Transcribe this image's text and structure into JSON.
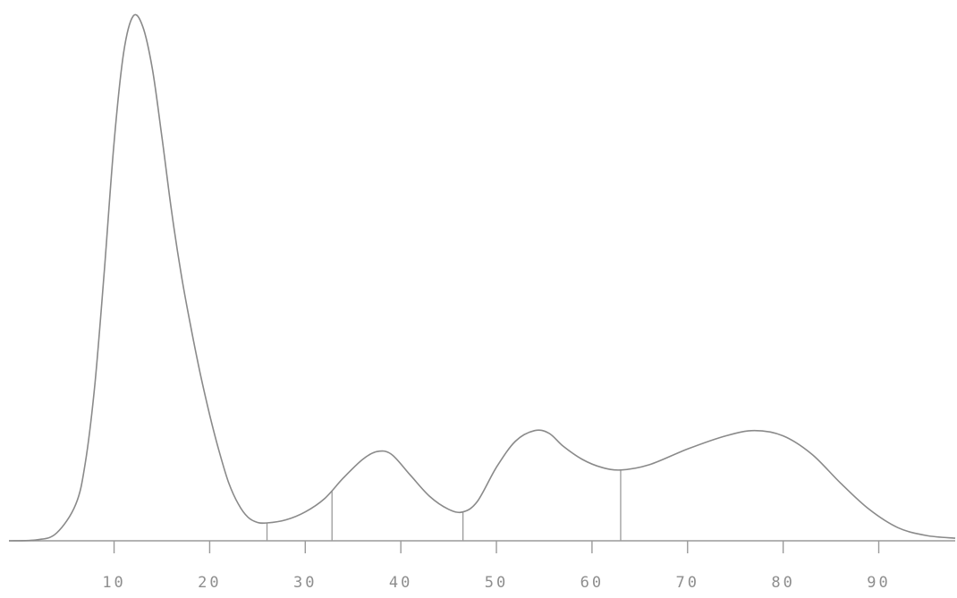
{
  "chart_data": {
    "type": "line",
    "title": "",
    "xlabel": "",
    "ylabel": "",
    "xlim": [
      -1,
      98
    ],
    "ylim": [
      0,
      100
    ],
    "grid": false,
    "line_color": "#8a8a8a",
    "axis_color": "#9a9a9a",
    "x_ticks": [
      {
        "value": 10,
        "label": "10"
      },
      {
        "value": 20,
        "label": "20"
      },
      {
        "value": 30,
        "label": "30"
      },
      {
        "value": 40,
        "label": "40"
      },
      {
        "value": 50,
        "label": "50"
      },
      {
        "value": 60,
        "label": "60"
      },
      {
        "value": 70,
        "label": "70"
      },
      {
        "value": 80,
        "label": "80"
      },
      {
        "value": 90,
        "label": "90"
      }
    ],
    "series": [
      {
        "x": [
          -1,
          2,
          4,
          6,
          7,
          8,
          9,
          10,
          11,
          12,
          13,
          14,
          15,
          16,
          17,
          18,
          19,
          20,
          21,
          22,
          23,
          24,
          25,
          26,
          28,
          30,
          32,
          34,
          36,
          37.5,
          39,
          41,
          43,
          45,
          46.5,
          48,
          50,
          52,
          54,
          55.5,
          57,
          59,
          61,
          63,
          66,
          70,
          74,
          77,
          80,
          83,
          86,
          89,
          92,
          95,
          98
        ],
        "y": [
          0,
          0.2,
          1.5,
          7,
          15,
          30,
          52,
          76,
          93,
          100,
          98,
          90,
          77,
          63,
          51,
          41,
          32,
          24,
          17,
          11,
          7,
          4.5,
          3.5,
          3.4,
          4,
          5.5,
          8,
          12,
          15.5,
          17,
          16.5,
          12.5,
          8.5,
          6,
          5.5,
          7.5,
          14,
          19,
          21,
          20.5,
          18,
          15.5,
          14,
          13.5,
          14.5,
          17.5,
          20,
          21,
          20,
          16.5,
          11,
          6,
          2.5,
          1,
          0.5
        ]
      }
    ],
    "dividers": [
      {
        "x": 26,
        "y": 3.4
      },
      {
        "x": 32.8,
        "y": 9.5
      },
      {
        "x": 46.5,
        "y": 5.5
      },
      {
        "x": 63,
        "y": 13.5
      }
    ]
  }
}
